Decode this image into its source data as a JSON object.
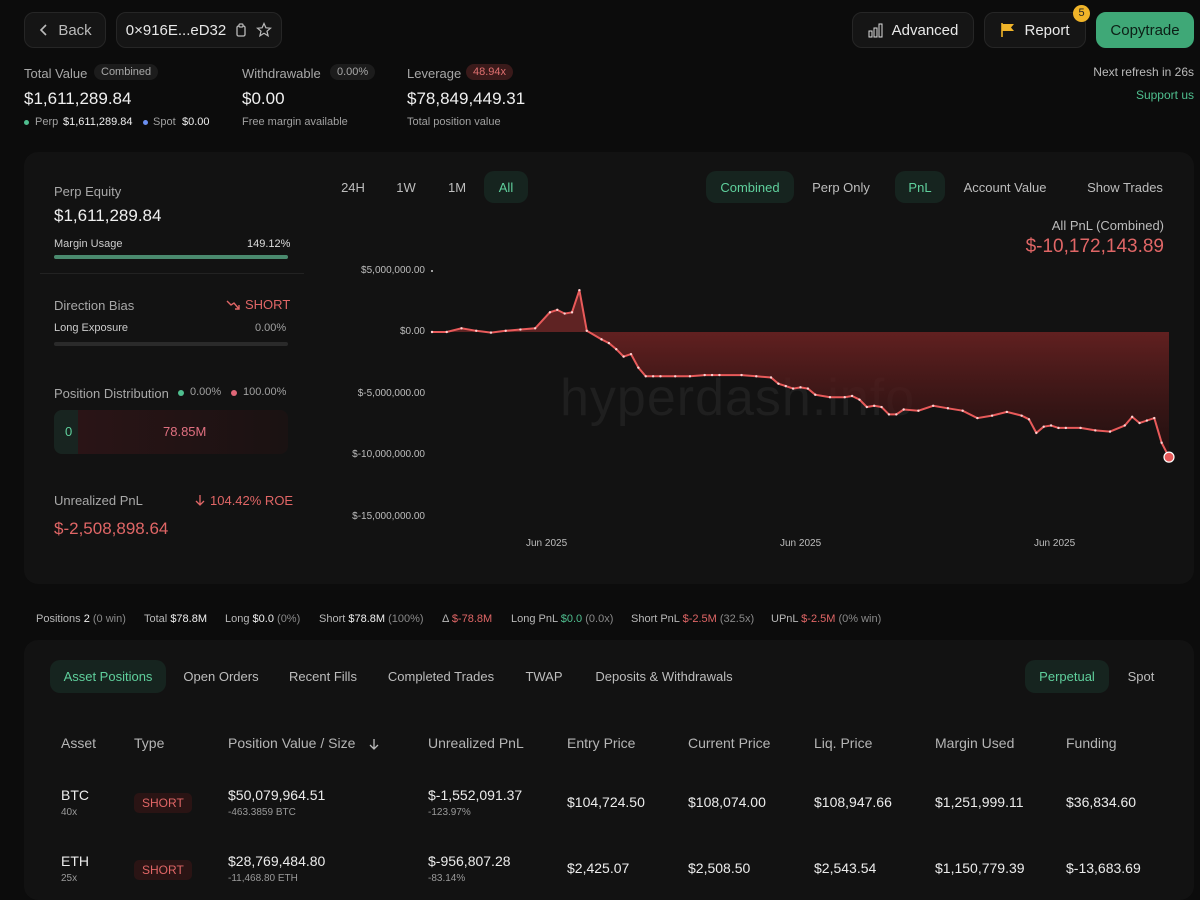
{
  "header": {
    "back_label": "Back",
    "address": "0×916E...eD32",
    "advanced_label": "Advanced",
    "report_label": "Report",
    "report_count": "5",
    "copytrade_label": "Copytrade",
    "refresh_text": "Next refresh in 26s",
    "support_label": "Support us"
  },
  "summary": {
    "total_value_label": "Total Value",
    "total_value_tag": "Combined",
    "total_value": "$1,611,289.84",
    "perp_label": "Perp",
    "perp_value": "$1,611,289.84",
    "spot_label": "Spot",
    "spot_value": "$0.00",
    "withdrawable_label": "Withdrawable",
    "withdrawable_pct": "0.00%",
    "withdrawable": "$0.00",
    "withdrawable_sub": "Free margin available",
    "leverage_label": "Leverage",
    "leverage_tag": "48.94x",
    "leverage_value": "$78,849,449.31",
    "leverage_sub": "Total position value"
  },
  "side": {
    "perp_equity_label": "Perp Equity",
    "perp_equity": "$1,611,289.84",
    "margin_usage_label": "Margin Usage",
    "margin_usage": "149.12%",
    "margin_usage_fraction": 1.0,
    "direction_bias_label": "Direction Bias",
    "direction_bias": "SHORT",
    "long_exposure_label": "Long Exposure",
    "long_exposure": "0.00%",
    "position_distribution_label": "Position Distribution",
    "dist_long": "0.00%",
    "dist_short": "100.00%",
    "dist_left_value": "0",
    "dist_right_value": "78.85M",
    "unrealized_label": "Unrealized PnL",
    "roe": "104.42% ROE",
    "unrealized": "$-2,508,898.64"
  },
  "chart_controls": {
    "ranges": [
      "24H",
      "1W",
      "1M",
      "All"
    ],
    "active_range": "All",
    "views": [
      "Combined",
      "Perp Only"
    ],
    "metrics": [
      "PnL",
      "Account Value"
    ],
    "show_trades": "Show Trades",
    "pnl_title": "All PnL (Combined)",
    "pnl_value": "$-10,172,143.89",
    "watermark": "hyperdash.info"
  },
  "chart_data": {
    "type": "area",
    "ylim": [
      -15000000,
      5000000
    ],
    "y_ticks": [
      5000000,
      0,
      -5000000,
      -10000000,
      -15000000
    ],
    "y_tick_labels": [
      "$5,000,000.00",
      "$0.00",
      "$-5,000,000.00",
      "$-10,000,000.00",
      "$-15,000,000.00"
    ],
    "x_tick_labels": [
      "Jun 2025",
      "Jun 2025",
      "Jun 2025"
    ],
    "x": [
      0,
      2,
      4,
      6,
      8,
      10,
      12,
      14,
      16,
      17,
      18,
      19,
      20,
      21,
      23,
      24,
      25,
      26,
      27,
      28,
      29,
      30,
      31,
      33,
      35,
      37,
      38,
      39,
      42,
      44,
      46,
      47,
      48,
      49,
      50,
      51,
      52,
      54,
      56,
      57,
      58,
      59,
      60,
      61,
      62,
      63,
      64,
      66,
      68,
      70,
      72,
      74,
      76,
      78,
      80,
      81,
      82,
      83,
      84,
      85,
      86,
      88,
      90,
      92,
      94,
      95,
      96,
      97,
      98,
      99,
      100
    ],
    "values": [
      0,
      0,
      300000,
      100000,
      -50000,
      100000,
      200000,
      300000,
      1600000,
      1800000,
      1500000,
      1600000,
      3400000,
      100000,
      -600000,
      -900000,
      -1400000,
      -2000000,
      -1800000,
      -2900000,
      -3600000,
      -3600000,
      -3600000,
      -3600000,
      -3600000,
      -3500000,
      -3500000,
      -3500000,
      -3500000,
      -3600000,
      -3700000,
      -4200000,
      -4400000,
      -4600000,
      -4500000,
      -4600000,
      -5100000,
      -5300000,
      -5300000,
      -5200000,
      -5500000,
      -6100000,
      -6000000,
      -6100000,
      -6700000,
      -6700000,
      -6300000,
      -6400000,
      -6000000,
      -6200000,
      -6400000,
      -7000000,
      -6800000,
      -6500000,
      -6800000,
      -7100000,
      -8200000,
      -7700000,
      -7600000,
      -7800000,
      -7800000,
      -7800000,
      -8000000,
      -8100000,
      -7600000,
      -6900000,
      -7400000,
      -7200000,
      -7000000,
      -9000000,
      -10172143.89
    ]
  },
  "stats_bar": {
    "positions_label": "Positions",
    "positions": "2",
    "positions_win": "(0 win)",
    "total_label": "Total",
    "total": "$78.8M",
    "long_label": "Long",
    "long": "$0.0",
    "long_pct": "(0%)",
    "short_label": "Short",
    "short": "$78.8M",
    "short_pct": "(100%)",
    "delta_label": "Δ",
    "delta": "$-78.8M",
    "long_pnl_label": "Long PnL",
    "long_pnl": "$0.0",
    "long_pnl_x": "(0.0x)",
    "short_pnl_label": "Short PnL",
    "short_pnl": "$-2.5M",
    "short_pnl_x": "(32.5x)",
    "upnl_label": "UPnL",
    "upnl": "$-2.5M",
    "upnl_win": "(0% win)"
  },
  "tabs": [
    "Asset Positions",
    "Open Orders",
    "Recent Fills",
    "Completed Trades",
    "TWAP",
    "Deposits & Withdrawals"
  ],
  "market_tabs": [
    "Perpetual",
    "Spot"
  ],
  "table": {
    "headers": [
      "Asset",
      "Type",
      "Position Value / Size",
      "Unrealized PnL",
      "Entry Price",
      "Current Price",
      "Liq. Price",
      "Margin Used",
      "Funding"
    ],
    "rows": [
      {
        "asset": "BTC",
        "lev": "40x",
        "type": "SHORT",
        "value": "$50,079,964.51",
        "size": "-463.3859 BTC",
        "pnl": "$-1,552,091.37",
        "pnl_pct": "-123.97%",
        "entry": "$104,724.50",
        "current": "$108,074.00",
        "liq": "$108,947.66",
        "margin": "$1,251,999.11",
        "funding": "$36,834.60"
      },
      {
        "asset": "ETH",
        "lev": "25x",
        "type": "SHORT",
        "value": "$28,769,484.80",
        "size": "-11,468.80 ETH",
        "pnl": "$-956,807.28",
        "pnl_pct": "-83.14%",
        "entry": "$2,425.07",
        "current": "$2,508.50",
        "liq": "$2,543.54",
        "margin": "$1,150,779.39",
        "funding": "$-13,683.69"
      }
    ]
  }
}
